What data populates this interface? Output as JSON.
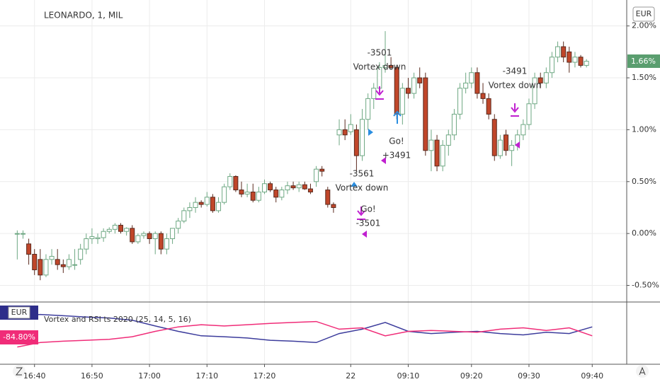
{
  "chart_data": {
    "type": "candlestick",
    "title": "LEONARDO, 1, MIL",
    "currency": "EUR",
    "last_price_label": "1.66%",
    "ylim": [
      -0.66,
      2.25
    ],
    "yticks": [
      {
        "value": -0.5,
        "label": "-0.50%"
      },
      {
        "value": 0,
        "label": "0.00%"
      },
      {
        "value": 0.5,
        "label": "0.50%"
      },
      {
        "value": 1,
        "label": "1.00%"
      },
      {
        "value": 1.5,
        "label": "1.50%"
      },
      {
        "value": 2,
        "label": "2.00%"
      }
    ],
    "xlim": [
      -3,
      106
    ],
    "xticks": [
      {
        "value": 3,
        "label": "16:40"
      },
      {
        "value": 13,
        "label": "16:50"
      },
      {
        "value": 23,
        "label": "17:00"
      },
      {
        "value": 33,
        "label": "17:10"
      },
      {
        "value": 43,
        "label": "17:20"
      },
      {
        "value": 58,
        "label": "22"
      },
      {
        "value": 68,
        "label": "09:10"
      },
      {
        "value": 79,
        "label": "09:20"
      },
      {
        "value": 89,
        "label": "09:30"
      },
      {
        "value": 100,
        "label": "09:40"
      }
    ],
    "grid": true,
    "up_color": "#6ea883",
    "down_color": "#c0462a",
    "candles": [
      [
        0.0,
        0.03,
        -0.25,
        0.0
      ],
      [
        0.0,
        0.03,
        -0.05,
        0.0
      ],
      [
        -0.1,
        -0.05,
        -0.3,
        -0.2
      ],
      [
        -0.2,
        -0.15,
        -0.4,
        -0.35
      ],
      [
        -0.25,
        -0.15,
        -0.45,
        -0.4
      ],
      [
        -0.4,
        -0.2,
        -0.42,
        -0.25
      ],
      [
        -0.25,
        -0.15,
        -0.3,
        -0.22
      ],
      [
        -0.25,
        -0.15,
        -0.35,
        -0.3
      ],
      [
        -0.3,
        -0.25,
        -0.38,
        -0.32
      ],
      [
        -0.32,
        -0.2,
        -0.35,
        -0.25
      ],
      [
        -0.3,
        -0.15,
        -0.35,
        -0.3
      ],
      [
        -0.25,
        -0.1,
        -0.3,
        -0.15
      ],
      [
        -0.15,
        0.0,
        -0.2,
        -0.05
      ],
      [
        -0.05,
        0.05,
        -0.1,
        -0.03
      ],
      [
        -0.05,
        0.0,
        -0.1,
        -0.04
      ],
      [
        -0.04,
        0.05,
        -0.08,
        0.02
      ],
      [
        0.02,
        0.06,
        0.0,
        0.04
      ],
      [
        0.04,
        0.1,
        0.0,
        0.08
      ],
      [
        0.08,
        0.1,
        0.0,
        0.02
      ],
      [
        0.02,
        0.06,
        -0.02,
        0.05
      ],
      [
        0.05,
        0.08,
        -0.1,
        -0.08
      ],
      [
        -0.08,
        0.0,
        -0.1,
        -0.02
      ],
      [
        -0.02,
        0.02,
        -0.05,
        0.0
      ],
      [
        0.0,
        0.02,
        -0.1,
        -0.05
      ],
      [
        -0.05,
        0.02,
        -0.2,
        0.0
      ],
      [
        0.0,
        0.02,
        -0.2,
        -0.15
      ],
      [
        -0.15,
        0.0,
        -0.2,
        -0.05
      ],
      [
        -0.05,
        0.05,
        -0.1,
        0.05
      ],
      [
        0.05,
        0.15,
        0.0,
        0.12
      ],
      [
        0.12,
        0.25,
        0.1,
        0.22
      ],
      [
        0.22,
        0.3,
        0.15,
        0.25
      ],
      [
        0.25,
        0.35,
        0.2,
        0.3
      ],
      [
        0.3,
        0.32,
        0.25,
        0.28
      ],
      [
        0.28,
        0.4,
        0.26,
        0.35
      ],
      [
        0.35,
        0.38,
        0.2,
        0.22
      ],
      [
        0.22,
        0.35,
        0.2,
        0.3
      ],
      [
        0.3,
        0.48,
        0.28,
        0.45
      ],
      [
        0.45,
        0.58,
        0.42,
        0.55
      ],
      [
        0.55,
        0.56,
        0.4,
        0.42
      ],
      [
        0.42,
        0.5,
        0.35,
        0.38
      ],
      [
        0.38,
        0.48,
        0.35,
        0.4
      ],
      [
        0.4,
        0.48,
        0.3,
        0.32
      ],
      [
        0.32,
        0.45,
        0.3,
        0.4
      ],
      [
        0.4,
        0.52,
        0.38,
        0.48
      ],
      [
        0.48,
        0.5,
        0.4,
        0.42
      ],
      [
        0.42,
        0.45,
        0.3,
        0.35
      ],
      [
        0.35,
        0.45,
        0.32,
        0.42
      ],
      [
        0.42,
        0.5,
        0.38,
        0.46
      ],
      [
        0.46,
        0.5,
        0.42,
        0.44
      ],
      [
        0.44,
        0.5,
        0.4,
        0.47
      ],
      [
        0.47,
        0.5,
        0.42,
        0.43
      ],
      [
        0.43,
        0.48,
        0.38,
        0.4
      ],
      [
        0.5,
        0.65,
        0.45,
        0.62
      ],
      [
        0.62,
        0.65,
        0.55,
        0.6
      ],
      [
        0.42,
        0.45,
        0.25,
        0.28
      ],
      [
        0.28,
        0.3,
        0.2,
        0.25
      ],
      [
        0.95,
        1.1,
        0.85,
        1.0
      ],
      [
        1.0,
        1.1,
        0.9,
        0.95
      ],
      [
        0.98,
        1.15,
        0.95,
        1.05
      ],
      [
        1.0,
        1.05,
        0.6,
        0.75
      ],
      [
        0.75,
        1.2,
        0.7,
        1.1
      ],
      [
        1.1,
        1.35,
        1.0,
        1.3
      ],
      [
        1.3,
        1.45,
        1.2,
        1.4
      ],
      [
        1.4,
        1.65,
        1.35,
        1.6
      ],
      [
        1.6,
        1.95,
        1.55,
        1.62
      ],
      [
        1.62,
        1.7,
        1.58,
        1.6
      ],
      [
        1.6,
        1.62,
        1.1,
        1.15
      ],
      [
        1.15,
        1.45,
        1.05,
        1.4
      ],
      [
        1.4,
        1.5,
        1.3,
        1.35
      ],
      [
        1.35,
        1.55,
        1.3,
        1.5
      ],
      [
        1.5,
        1.6,
        1.4,
        1.45
      ],
      [
        1.5,
        1.55,
        0.75,
        0.8
      ],
      [
        0.8,
        1.0,
        0.6,
        0.9
      ],
      [
        0.9,
        0.95,
        0.6,
        0.65
      ],
      [
        0.65,
        0.9,
        0.6,
        0.85
      ],
      [
        0.85,
        1.0,
        0.75,
        0.95
      ],
      [
        0.95,
        1.2,
        0.9,
        1.15
      ],
      [
        1.15,
        1.45,
        1.1,
        1.4
      ],
      [
        1.4,
        1.55,
        1.35,
        1.45
      ],
      [
        1.45,
        1.6,
        1.4,
        1.55
      ],
      [
        1.55,
        1.6,
        1.3,
        1.35
      ],
      [
        1.35,
        1.45,
        1.25,
        1.3
      ],
      [
        1.3,
        1.35,
        1.1,
        1.15
      ],
      [
        1.1,
        1.15,
        0.7,
        0.75
      ],
      [
        0.75,
        0.95,
        0.72,
        0.9
      ],
      [
        0.95,
        1.0,
        0.75,
        0.8
      ],
      [
        0.8,
        0.9,
        0.65,
        0.85
      ],
      [
        0.85,
        1.0,
        0.8,
        0.95
      ],
      [
        0.95,
        1.1,
        0.9,
        1.05
      ],
      [
        1.05,
        1.3,
        1.0,
        1.25
      ],
      [
        1.25,
        1.55,
        1.2,
        1.5
      ],
      [
        1.5,
        1.55,
        1.4,
        1.45
      ],
      [
        1.45,
        1.6,
        1.4,
        1.55
      ],
      [
        1.55,
        1.75,
        1.5,
        1.7
      ],
      [
        1.7,
        1.85,
        1.65,
        1.8
      ],
      [
        1.8,
        1.85,
        1.65,
        1.7
      ],
      [
        1.75,
        1.8,
        1.55,
        1.65
      ],
      [
        1.65,
        1.75,
        1.6,
        1.7
      ],
      [
        1.7,
        1.72,
        1.6,
        1.62
      ],
      [
        1.62,
        1.68,
        1.6,
        1.66
      ]
    ],
    "annotations": [
      {
        "lines": [
          "-3501",
          "Vortex down"
        ]
      },
      {
        "lines": [
          "Go!",
          "+3491"
        ]
      },
      {
        "lines": [
          "-3561",
          "Vortex down"
        ]
      },
      {
        "lines": [
          "Go!",
          "-3501"
        ]
      },
      {
        "lines": [
          "-3491",
          "Vortex down"
        ]
      }
    ],
    "indicator": {
      "title": "Vortex and RSI ts 2020 (25, 14, 5, 16)",
      "currency": "EUR",
      "value_label": "-84.80%",
      "ylim": [
        0,
        100
      ],
      "x": [
        0,
        4,
        8,
        12,
        16,
        20,
        24,
        28,
        32,
        36,
        40,
        44,
        48,
        52,
        56,
        60,
        64,
        68,
        72,
        76,
        80,
        84,
        88,
        92,
        96,
        100
      ],
      "series": [
        {
          "color": "#3c3c9c",
          "values": [
            85,
            88,
            85,
            82,
            80,
            75,
            62,
            50,
            40,
            38,
            35,
            30,
            28,
            25,
            45,
            55,
            70,
            50,
            45,
            48,
            50,
            45,
            42,
            48,
            45,
            60
          ]
        },
        {
          "color": "#f02c78",
          "values": [
            15,
            25,
            28,
            30,
            32,
            38,
            50,
            60,
            65,
            62,
            65,
            68,
            70,
            72,
            55,
            58,
            40,
            50,
            52,
            50,
            48,
            55,
            58,
            52,
            58,
            40
          ]
        }
      ]
    }
  }
}
